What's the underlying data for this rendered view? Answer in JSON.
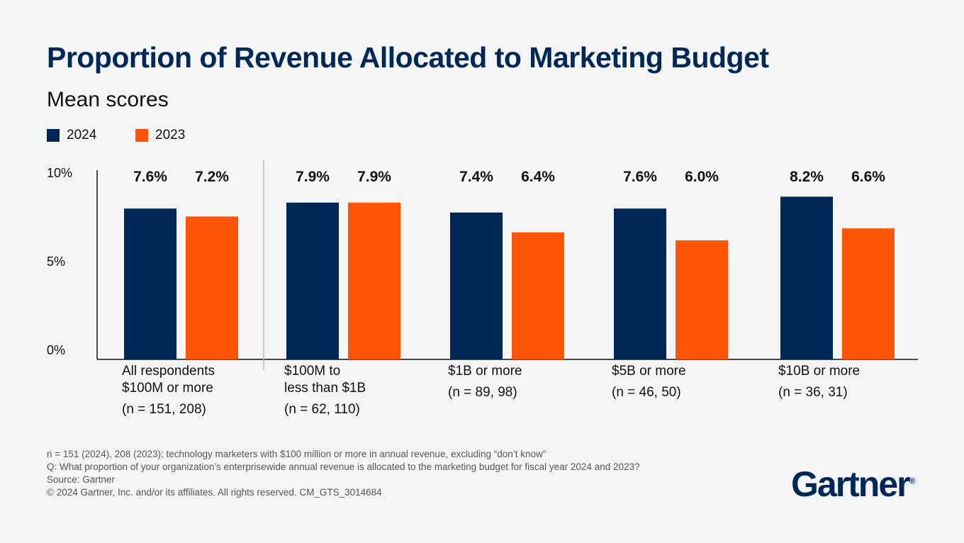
{
  "title": "Proportion of Revenue Allocated to Marketing Budget",
  "subtitle": "Mean scores",
  "colors": {
    "2024": "#002856",
    "2023": "#fe5509",
    "title": "#002856"
  },
  "chart_data": {
    "type": "bar",
    "title": "Proportion of Revenue Allocated to Marketing Budget",
    "subtitle": "Mean scores",
    "categories": [
      "All respondents $100M or more",
      "$100M to less than $1B",
      "$1B or more",
      "$5B or more",
      "$10B or more"
    ],
    "category_lines": [
      [
        "All respondents",
        "$100M or more"
      ],
      [
        "$100M to",
        "less than $1B"
      ],
      [
        "$1B or more"
      ],
      [
        "$5B or more"
      ],
      [
        "$10B or more"
      ]
    ],
    "sample_sizes": [
      "(n = 151, 208)",
      "(n = 62, 110)",
      "(n = 89, 98)",
      "(n = 46, 50)",
      "(n = 36, 31)"
    ],
    "series": [
      {
        "name": "2024",
        "values": [
          7.6,
          7.9,
          7.4,
          7.6,
          8.2
        ],
        "labels": [
          "7.6%",
          "7.9%",
          "7.4%",
          "7.6%",
          "8.2%"
        ]
      },
      {
        "name": "2023",
        "values": [
          7.2,
          7.9,
          6.4,
          6.0,
          6.6
        ],
        "labels": [
          "7.2%",
          "7.9%",
          "6.4%",
          "6.0%",
          "6.6%"
        ]
      }
    ],
    "yticks": [
      "0%",
      "5%",
      "10%"
    ],
    "ylim": [
      0,
      10
    ],
    "legend": "top-left",
    "grid": false
  },
  "footer": [
    "n = 151 (2024), 208 (2023); technology marketers with $100 million or more in annual revenue, excluding “don’t know”",
    "Q: What proportion of your organization’s enterprisewide annual revenue is allocated to the marketing budget for fiscal year 2024 and 2023?",
    "Source: Gartner",
    "© 2024 Gartner, Inc. and/or its affiliates. All rights reserved. CM_GTS_3014684"
  ],
  "logo": "Gartner"
}
